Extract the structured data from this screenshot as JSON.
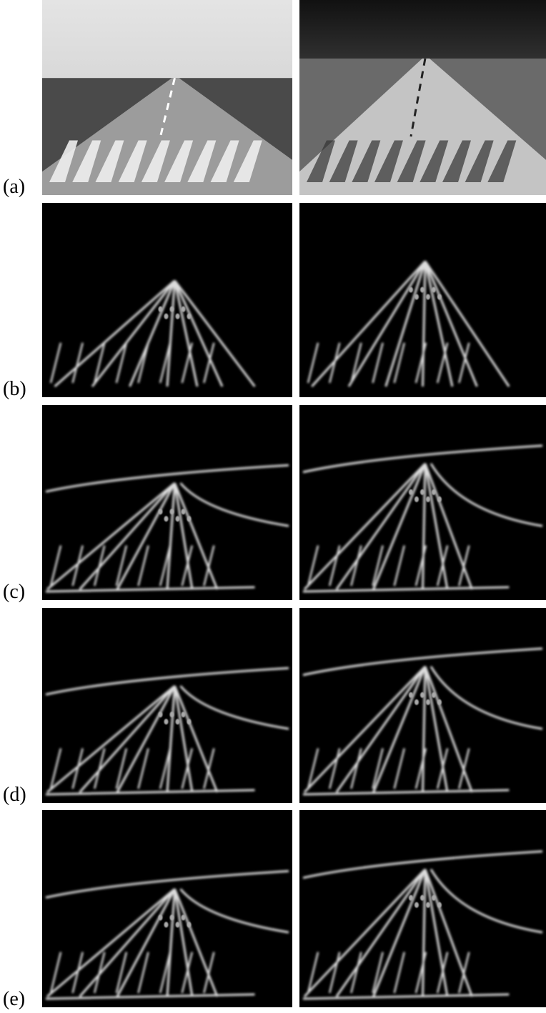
{
  "figure": {
    "rows": [
      {
        "label": "(a)"
      },
      {
        "label": "(b)"
      },
      {
        "label": "(c)"
      },
      {
        "label": "(d)"
      },
      {
        "label": "(e)"
      }
    ]
  }
}
